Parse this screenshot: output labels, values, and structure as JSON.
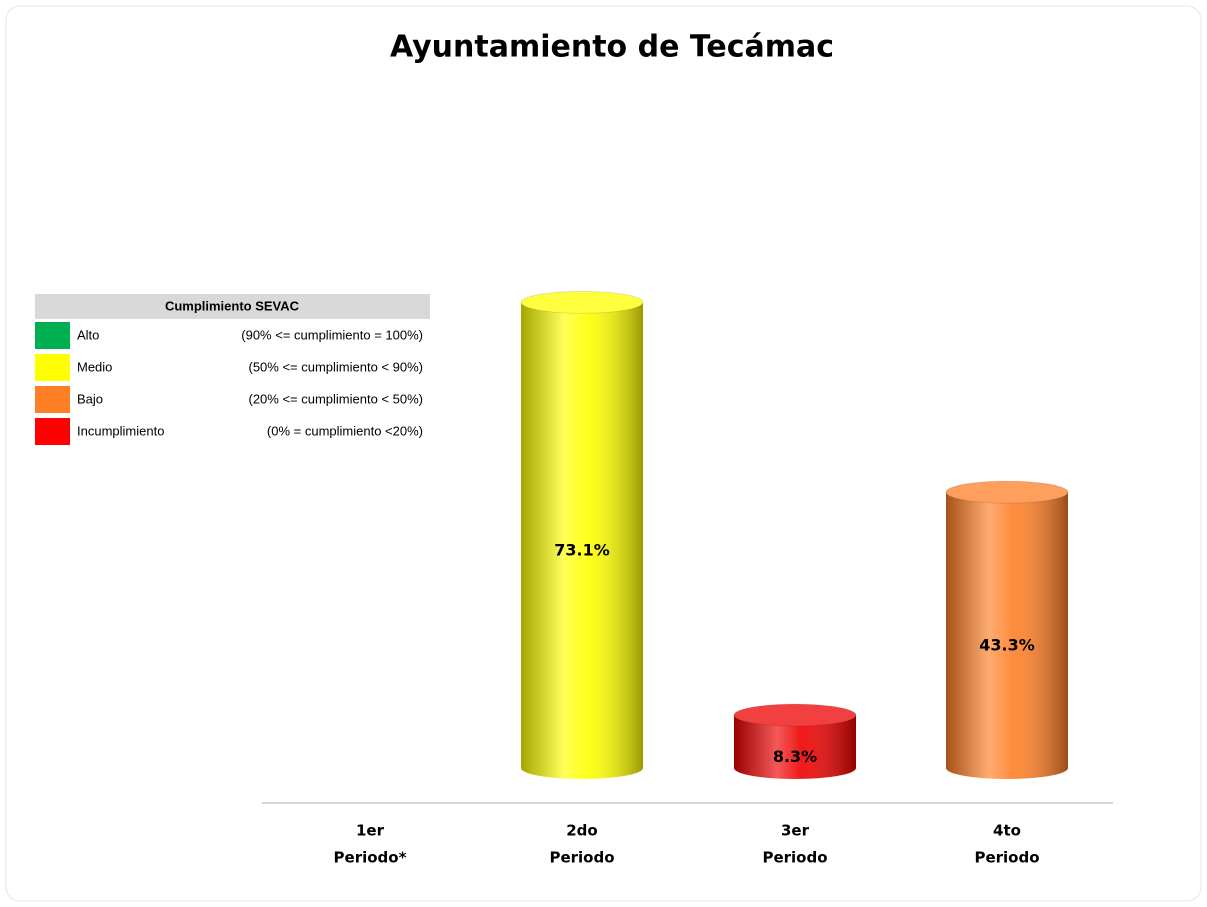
{
  "chart_data": {
    "type": "bar",
    "title": "Ayuntamiento de Tecámac",
    "categories": [
      [
        "1er",
        "Periodo*"
      ],
      [
        "2do",
        "Periodo"
      ],
      [
        "3er",
        "Periodo"
      ],
      [
        "4to",
        "Periodo"
      ]
    ],
    "values": [
      null,
      73.1,
      8.3,
      43.3
    ],
    "value_labels": [
      null,
      "73.1%",
      "8.3%",
      "43.3%"
    ],
    "colors": [
      null,
      "#ffff00",
      "#ee0000",
      "#ff7f27"
    ],
    "ylim": [
      0,
      100
    ],
    "legend": {
      "title": "Cumplimiento SEVAC",
      "items": [
        {
          "name": "Alto",
          "range": "(90% <= cumplimiento = 100%)",
          "color": "#00b050"
        },
        {
          "name": "Medio",
          "range": "(50% <= cumplimiento < 90%)",
          "color": "#ffff00"
        },
        {
          "name": "Bajo",
          "range": "(20% <= cumplimiento < 50%)",
          "color": "#ff7f27"
        },
        {
          "name": "Incumplimiento",
          "range": "(0% = cumplimiento <20%)",
          "color": "#ff0000"
        }
      ]
    }
  }
}
